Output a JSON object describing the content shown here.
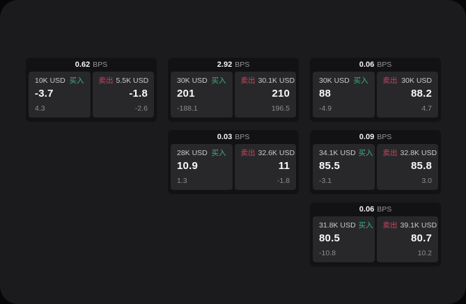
{
  "unit_label": "BPS",
  "buy_label": "买入",
  "sell_label": "卖出",
  "colors": {
    "buy_green": "#3bb377",
    "sell_red": "#c9445e",
    "surface": "#1b1b1d",
    "card_bg": "#121214",
    "tile_bg": "#28282b"
  },
  "cards": [
    {
      "bps": "0.62",
      "buy": {
        "amount": "10K USD",
        "price": "-3.7",
        "delta": "4.3"
      },
      "sell": {
        "amount": "5.5K USD",
        "price": "-1.8",
        "delta": "-2.6"
      }
    },
    {
      "bps": "2.92",
      "buy": {
        "amount": "30K USD",
        "price": "201",
        "delta": "-188.1"
      },
      "sell": {
        "amount": "30.1K USD",
        "price": "210",
        "delta": "196.5"
      }
    },
    {
      "bps": "0.06",
      "buy": {
        "amount": "30K USD",
        "price": "88",
        "delta": "-4.9"
      },
      "sell": {
        "amount": "30K USD",
        "price": "88.2",
        "delta": "4.7"
      }
    },
    {
      "bps": "0.03",
      "buy": {
        "amount": "28K USD",
        "price": "10.9",
        "delta": "1.3"
      },
      "sell": {
        "amount": "32.6K USD",
        "price": "11",
        "delta": "-1.8"
      }
    },
    {
      "bps": "0.09",
      "buy": {
        "amount": "34.1K USD",
        "price": "85.5",
        "delta": "-3.1"
      },
      "sell": {
        "amount": "32.8K USD",
        "price": "85.8",
        "delta": "3.0"
      }
    },
    {
      "bps": "0.06",
      "buy": {
        "amount": "31.8K USD",
        "price": "80.5",
        "delta": "-10.8"
      },
      "sell": {
        "amount": "39.1K USD",
        "price": "80.7",
        "delta": "10.2"
      }
    }
  ]
}
